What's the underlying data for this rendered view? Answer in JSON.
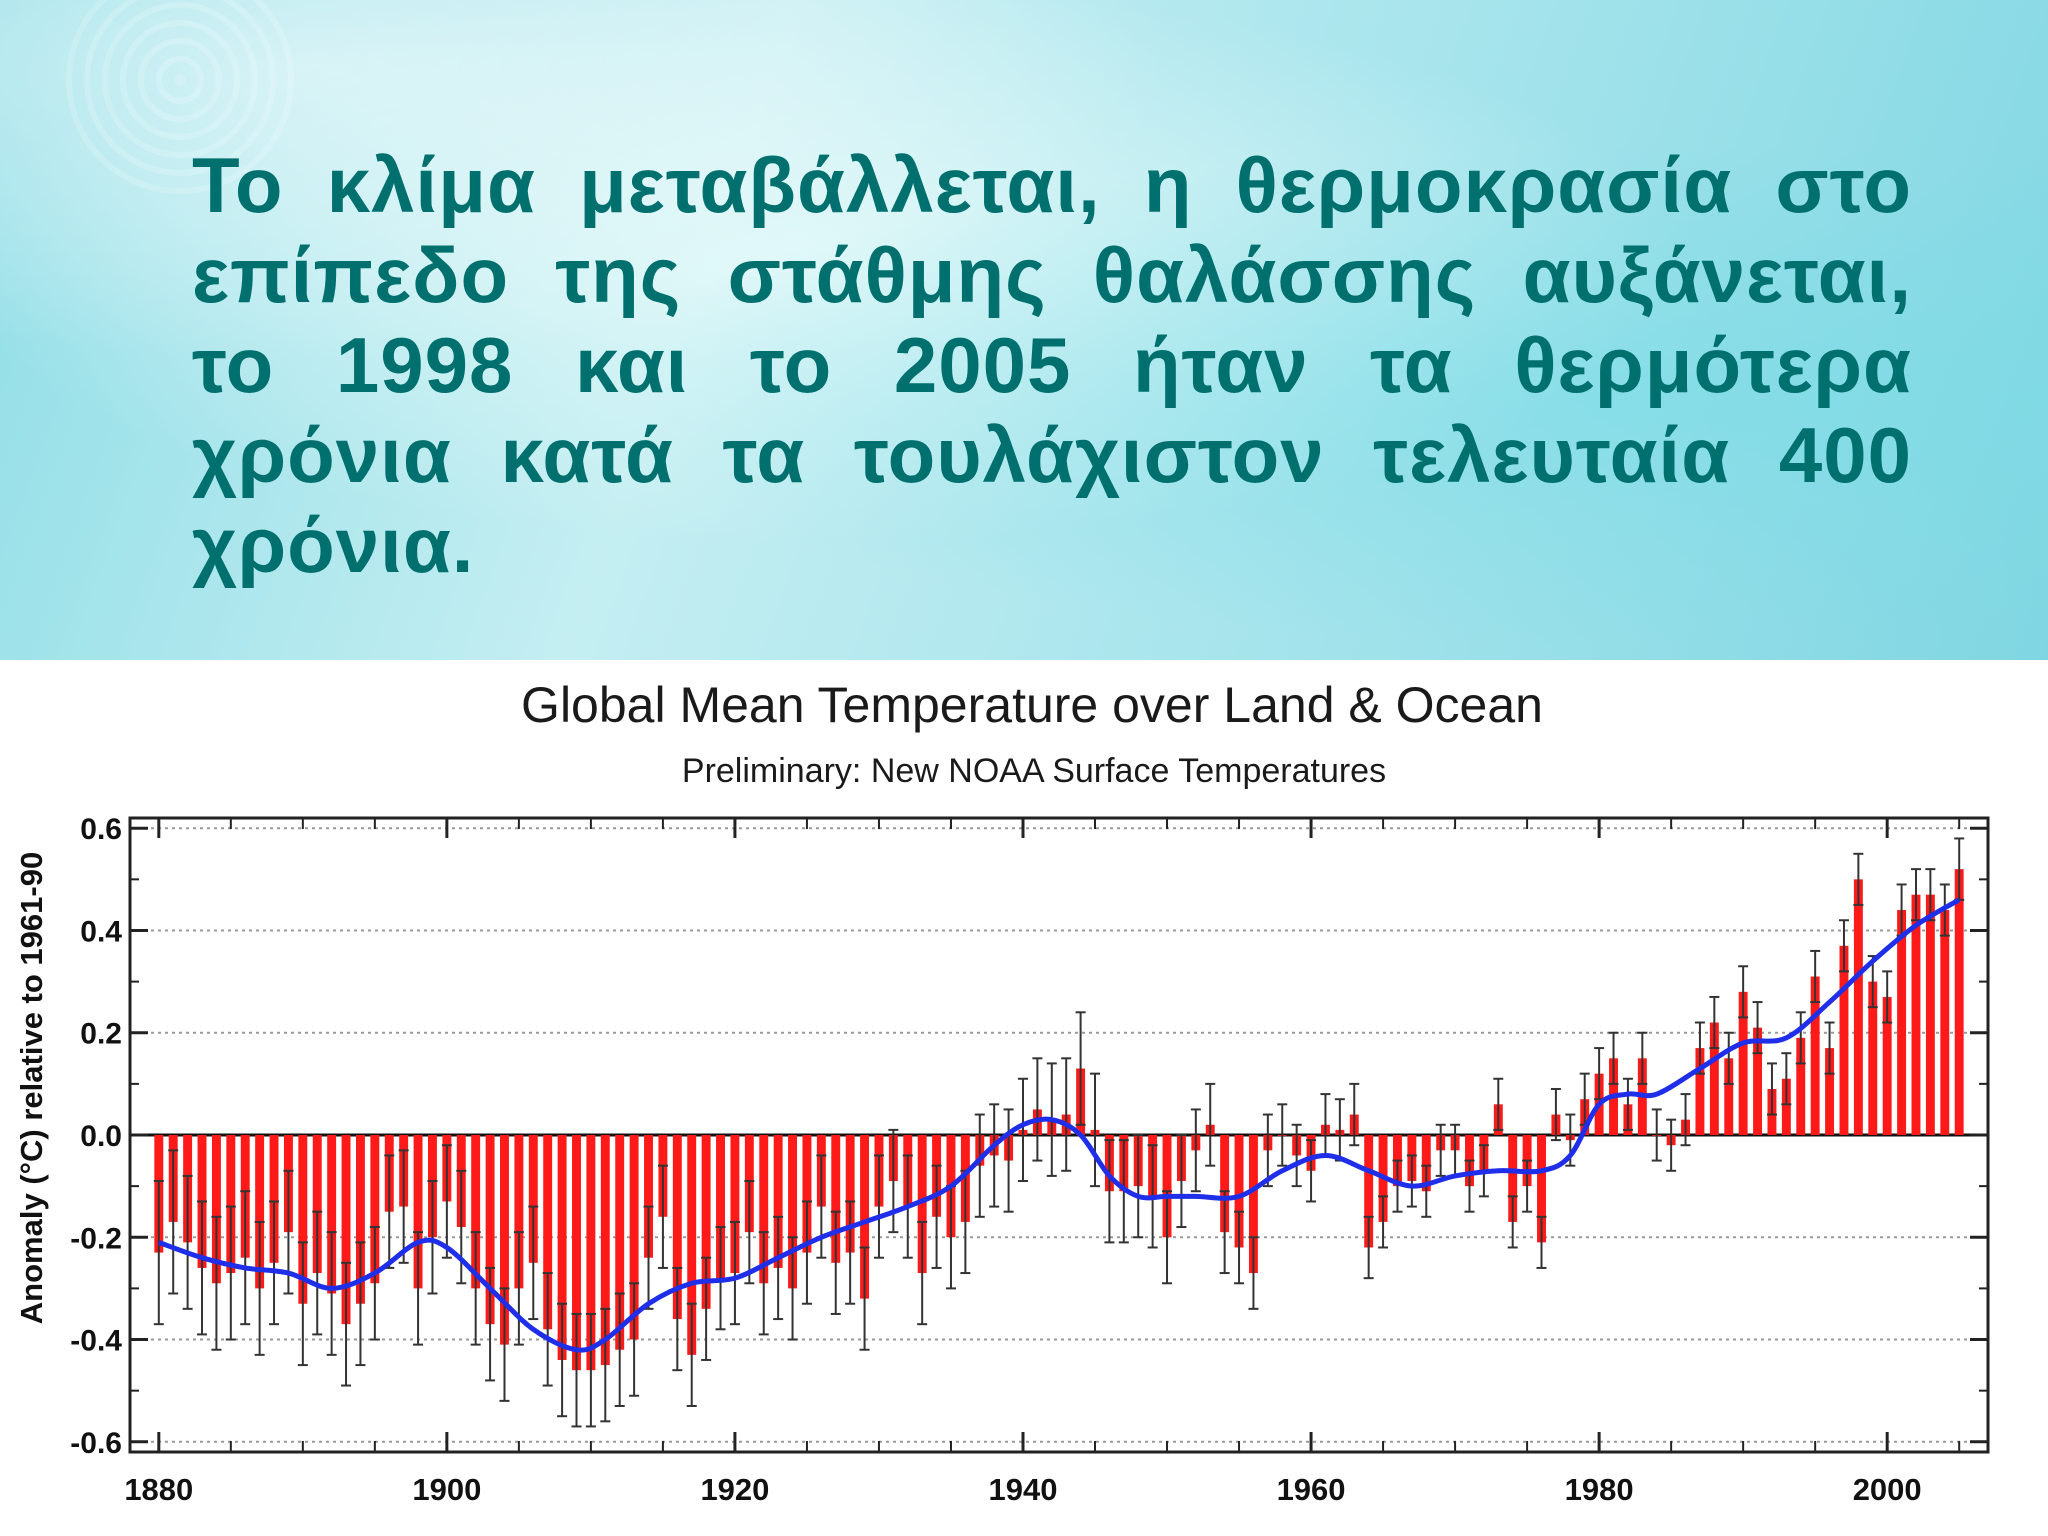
{
  "slide": {
    "heading": "Το κλίμα μεταβάλλεται, η θερμοκρασία στο επίπεδο της στάθμης θαλάσσης αυξάνεται, το 1998 και το 2005 ήταν τα θερμότερα χρόνια κατά τα τουλάχιστον τελευταία 400 χρόνια."
  },
  "colors": {
    "heading": "#00706e",
    "bars": "#ff1a1a",
    "smooth_line": "#1f2ee8",
    "error_bars": "#333333",
    "gridlines": "#9a9a9a"
  },
  "chart_data": {
    "type": "bar",
    "title": "Global Mean Temperature over Land & Ocean",
    "subtitle": "Preliminary: New NOAA Surface Temperatures",
    "xlabel": "",
    "ylabel": "Anomaly (°C) relative to 1961-90",
    "xlim": [
      1878,
      2007
    ],
    "ylim": [
      -0.62,
      0.62
    ],
    "x_ticks": [
      "1880",
      "1900",
      "1920",
      "1940",
      "1960",
      "1980",
      "2000"
    ],
    "y_ticks": [
      "0.6",
      "0.4",
      "0.2",
      "0.0",
      "-0.2",
      "-0.4",
      "-0.6"
    ],
    "y_tick_values": [
      0.6,
      0.4,
      0.2,
      0.0,
      -0.2,
      -0.4,
      -0.6
    ],
    "grid": "dotted horizontal",
    "years": [
      1880,
      1881,
      1882,
      1883,
      1884,
      1885,
      1886,
      1887,
      1888,
      1889,
      1890,
      1891,
      1892,
      1893,
      1894,
      1895,
      1896,
      1897,
      1898,
      1899,
      1900,
      1901,
      1902,
      1903,
      1904,
      1905,
      1906,
      1907,
      1908,
      1909,
      1910,
      1911,
      1912,
      1913,
      1914,
      1915,
      1916,
      1917,
      1918,
      1919,
      1920,
      1921,
      1922,
      1923,
      1924,
      1925,
      1926,
      1927,
      1928,
      1929,
      1930,
      1931,
      1932,
      1933,
      1934,
      1935,
      1936,
      1937,
      1938,
      1939,
      1940,
      1941,
      1942,
      1943,
      1944,
      1945,
      1946,
      1947,
      1948,
      1949,
      1950,
      1951,
      1952,
      1953,
      1954,
      1955,
      1956,
      1957,
      1958,
      1959,
      1960,
      1961,
      1962,
      1963,
      1964,
      1965,
      1966,
      1967,
      1968,
      1969,
      1970,
      1971,
      1972,
      1973,
      1974,
      1975,
      1976,
      1977,
      1978,
      1979,
      1980,
      1981,
      1982,
      1983,
      1984,
      1985,
      1986,
      1987,
      1988,
      1989,
      1990,
      1991,
      1992,
      1993,
      1994,
      1995,
      1996,
      1997,
      1998,
      1999,
      2000,
      2001,
      2002,
      2003,
      2004,
      2005
    ],
    "anomalies": [
      -0.23,
      -0.17,
      -0.21,
      -0.26,
      -0.29,
      -0.27,
      -0.24,
      -0.3,
      -0.25,
      -0.19,
      -0.33,
      -0.27,
      -0.31,
      -0.37,
      -0.33,
      -0.29,
      -0.15,
      -0.14,
      -0.3,
      -0.2,
      -0.13,
      -0.18,
      -0.3,
      -0.37,
      -0.41,
      -0.3,
      -0.25,
      -0.38,
      -0.44,
      -0.46,
      -0.46,
      -0.45,
      -0.42,
      -0.4,
      -0.24,
      -0.16,
      -0.36,
      -0.43,
      -0.34,
      -0.28,
      -0.27,
      -0.19,
      -0.29,
      -0.26,
      -0.3,
      -0.23,
      -0.14,
      -0.25,
      -0.23,
      -0.32,
      -0.14,
      -0.09,
      -0.14,
      -0.27,
      -0.16,
      -0.2,
      -0.17,
      -0.06,
      -0.04,
      -0.05,
      0.01,
      0.05,
      0.03,
      0.04,
      0.13,
      0.01,
      -0.11,
      -0.11,
      -0.1,
      -0.12,
      -0.2,
      -0.09,
      -0.03,
      0.02,
      -0.19,
      -0.22,
      -0.27,
      -0.03,
      0.0,
      -0.04,
      -0.07,
      0.02,
      0.01,
      0.04,
      -0.22,
      -0.17,
      -0.1,
      -0.09,
      -0.11,
      -0.03,
      -0.03,
      -0.1,
      -0.07,
      0.06,
      -0.17,
      -0.1,
      -0.21,
      0.04,
      -0.01,
      0.07,
      0.12,
      0.15,
      0.06,
      0.15,
      0.0,
      -0.02,
      0.03,
      0.17,
      0.22,
      0.15,
      0.28,
      0.21,
      0.09,
      0.11,
      0.19,
      0.31,
      0.17,
      0.37,
      0.5,
      0.3,
      0.27,
      0.44,
      0.47,
      0.47,
      0.44,
      0.52
    ],
    "error_margins": [
      0.14,
      0.14,
      0.13,
      0.13,
      0.13,
      0.13,
      0.13,
      0.13,
      0.12,
      0.12,
      0.12,
      0.12,
      0.12,
      0.12,
      0.12,
      0.11,
      0.11,
      0.11,
      0.11,
      0.11,
      0.11,
      0.11,
      0.11,
      0.11,
      0.11,
      0.11,
      0.11,
      0.11,
      0.11,
      0.11,
      0.11,
      0.11,
      0.11,
      0.11,
      0.1,
      0.1,
      0.1,
      0.1,
      0.1,
      0.1,
      0.1,
      0.1,
      0.1,
      0.1,
      0.1,
      0.1,
      0.1,
      0.1,
      0.1,
      0.1,
      0.1,
      0.1,
      0.1,
      0.1,
      0.1,
      0.1,
      0.1,
      0.1,
      0.1,
      0.1,
      0.1,
      0.1,
      0.11,
      0.11,
      0.11,
      0.11,
      0.1,
      0.1,
      0.1,
      0.1,
      0.09,
      0.09,
      0.08,
      0.08,
      0.08,
      0.07,
      0.07,
      0.07,
      0.06,
      0.06,
      0.06,
      0.06,
      0.06,
      0.06,
      0.06,
      0.05,
      0.05,
      0.05,
      0.05,
      0.05,
      0.05,
      0.05,
      0.05,
      0.05,
      0.05,
      0.05,
      0.05,
      0.05,
      0.05,
      0.05,
      0.05,
      0.05,
      0.05,
      0.05,
      0.05,
      0.05,
      0.05,
      0.05,
      0.05,
      0.05,
      0.05,
      0.05,
      0.05,
      0.05,
      0.05,
      0.05,
      0.05,
      0.05,
      0.05,
      0.05,
      0.05,
      0.05,
      0.05,
      0.05,
      0.05,
      0.06
    ],
    "smoothed_series": {
      "name": "smoothed trend",
      "x": [
        1880,
        1883,
        1886,
        1889,
        1892,
        1895,
        1898,
        1900,
        1903,
        1906,
        1909,
        1911,
        1914,
        1917,
        1920,
        1923,
        1926,
        1929,
        1932,
        1935,
        1938,
        1940,
        1942,
        1944,
        1946,
        1948,
        1950,
        1952,
        1955,
        1958,
        1961,
        1964,
        1967,
        1970,
        1973,
        1976,
        1978,
        1980,
        1982,
        1984,
        1987,
        1990,
        1993,
        1996,
        1999,
        2002,
        2005
      ],
      "values": [
        -0.21,
        -0.24,
        -0.26,
        -0.27,
        -0.3,
        -0.27,
        -0.21,
        -0.22,
        -0.3,
        -0.38,
        -0.42,
        -0.4,
        -0.33,
        -0.29,
        -0.28,
        -0.24,
        -0.2,
        -0.17,
        -0.14,
        -0.1,
        -0.02,
        0.02,
        0.03,
        0.0,
        -0.08,
        -0.12,
        -0.12,
        -0.12,
        -0.12,
        -0.07,
        -0.04,
        -0.07,
        -0.1,
        -0.08,
        -0.07,
        -0.07,
        -0.04,
        0.06,
        0.08,
        0.08,
        0.13,
        0.18,
        0.19,
        0.26,
        0.34,
        0.41,
        0.46
      ]
    }
  }
}
